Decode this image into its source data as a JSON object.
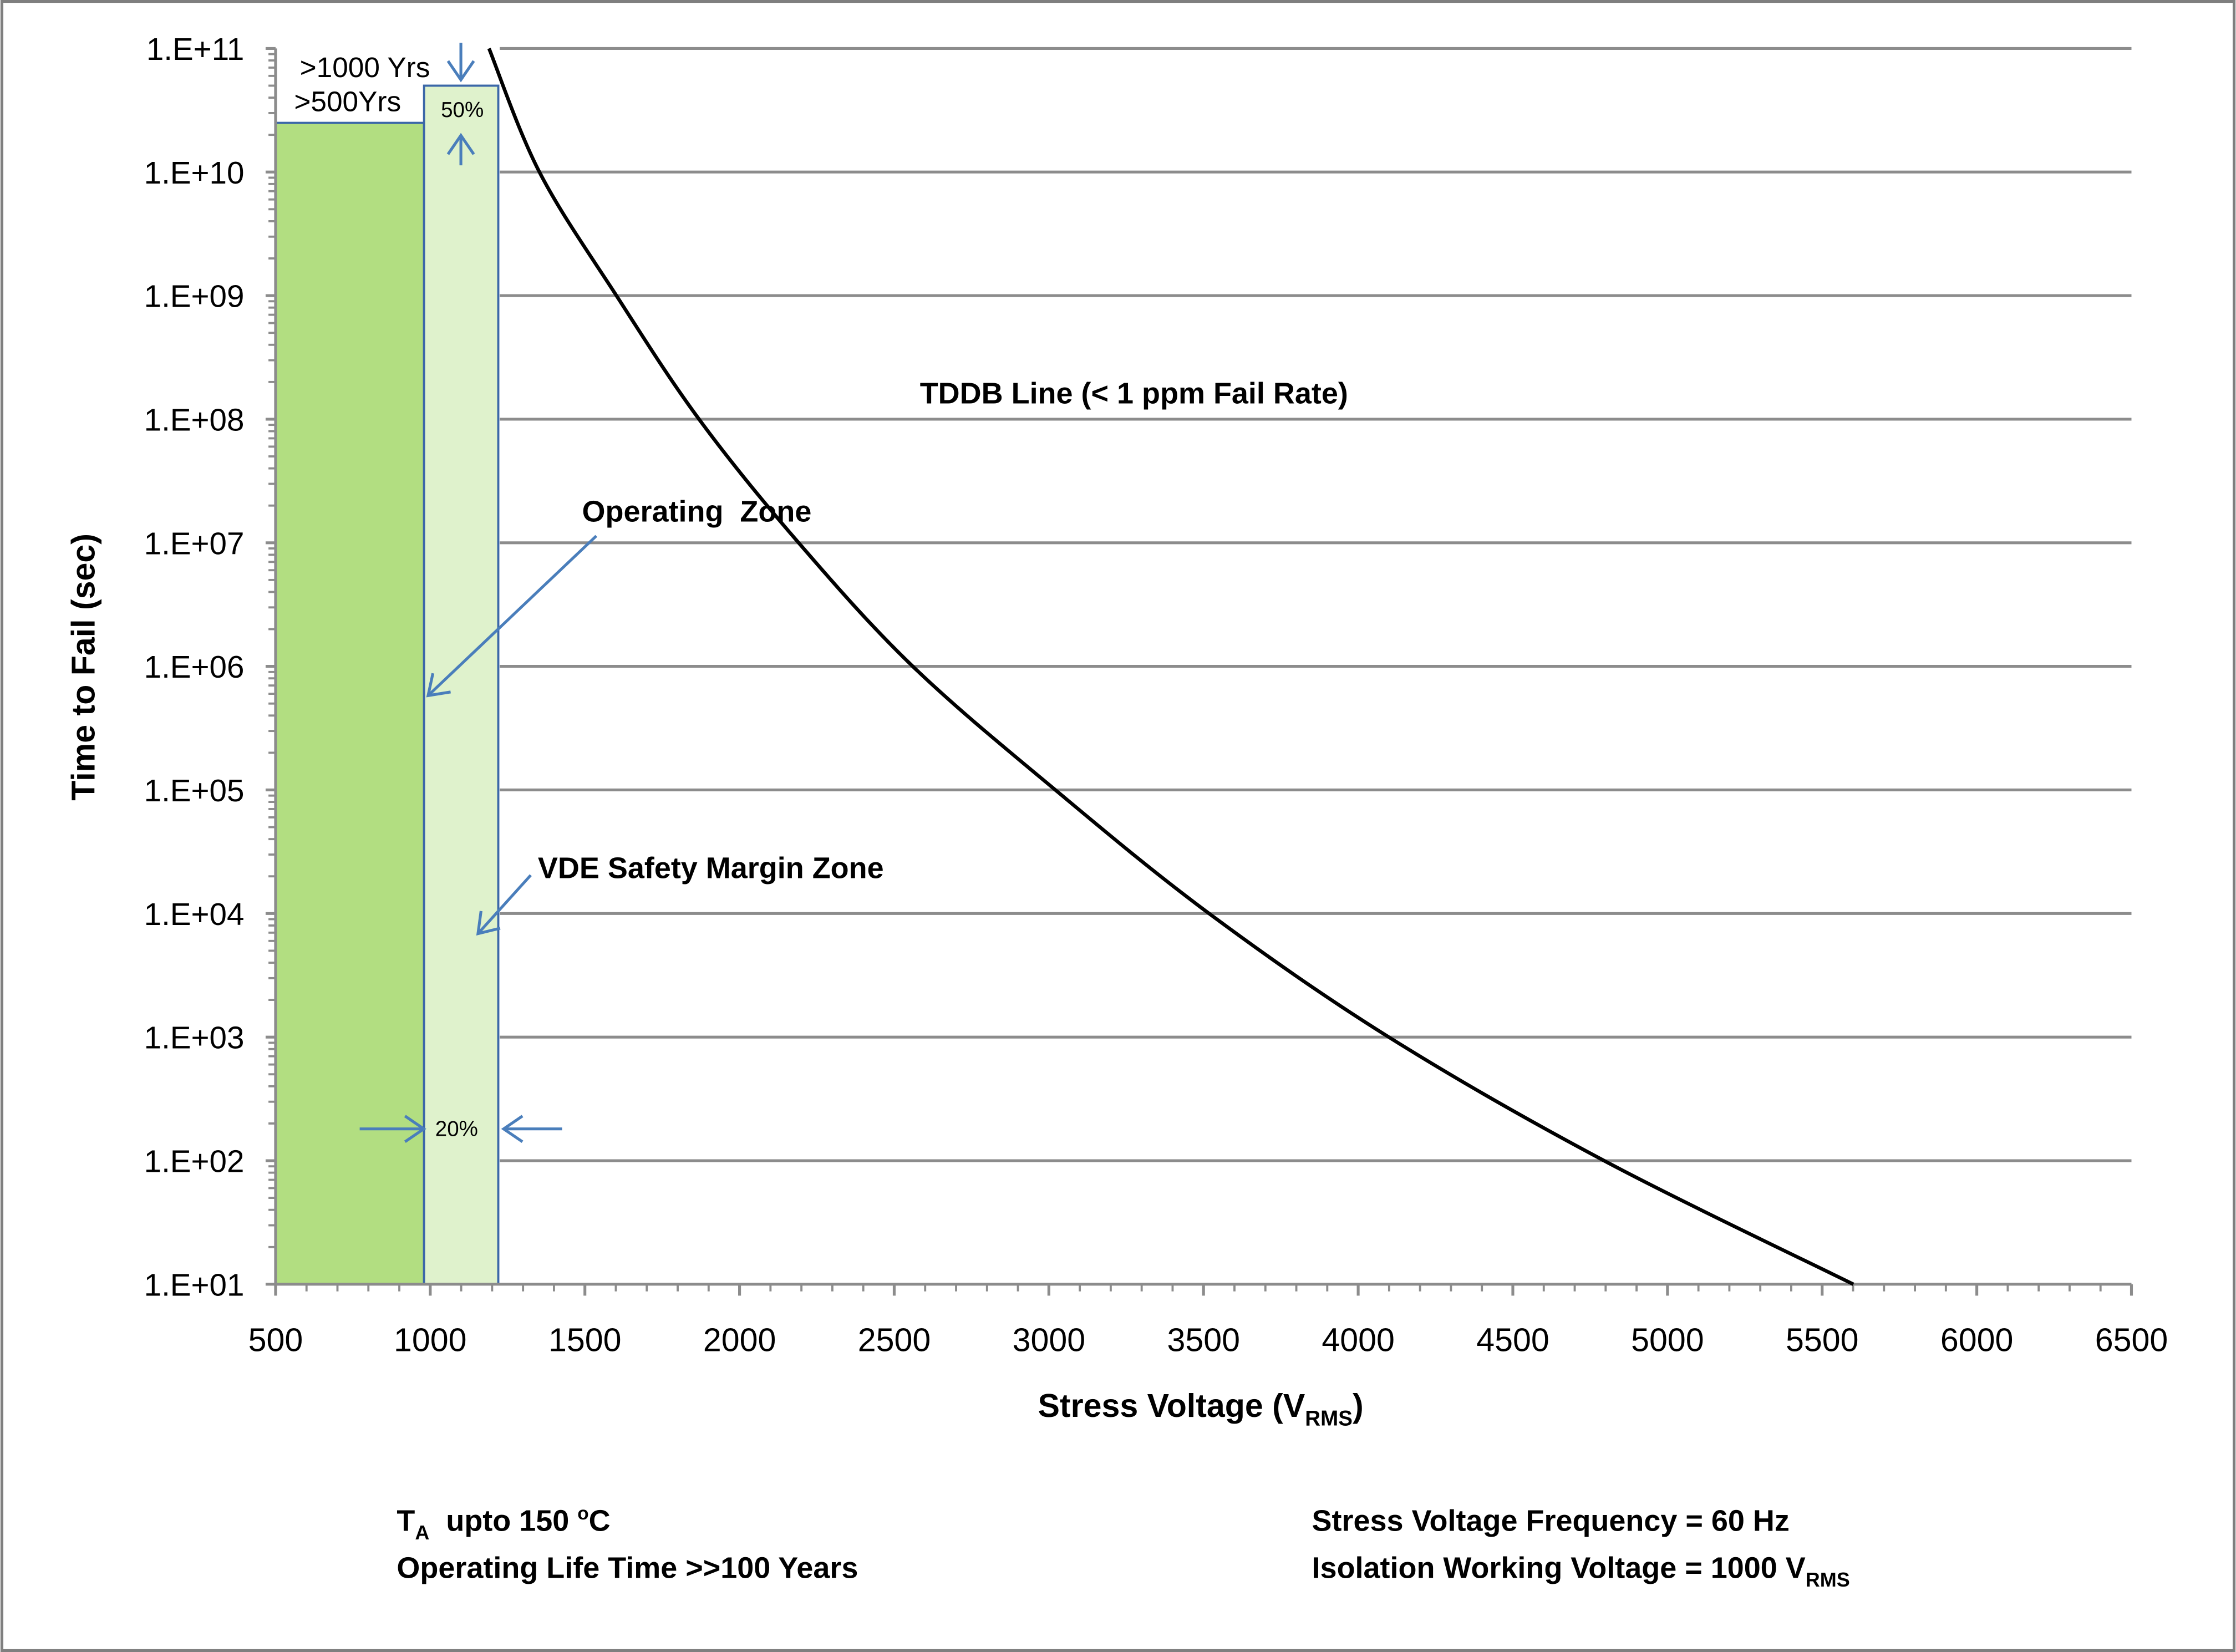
{
  "chart_data": {
    "type": "line",
    "title": "",
    "xlabel": "Stress Voltage (V",
    "xlabel_sub": "RMS",
    "xlabel_end": ")",
    "ylabel": "Time to Fail (sec)",
    "xlim": [
      500,
      6500
    ],
    "ylim": [
      10.0,
      100000000000.0
    ],
    "yscale": "log",
    "grid": "horizontal major",
    "x_ticks": [
      "500",
      "1000",
      "1500",
      "2000",
      "2500",
      "3000",
      "3500",
      "4000",
      "4500",
      "5000",
      "5500",
      "6000",
      "6500"
    ],
    "y_ticks": [
      "1.E+01",
      "1.E+02",
      "1.E+03",
      "1.E+04",
      "1.E+05",
      "1.E+06",
      "1.E+07",
      "1.E+08",
      "1.E+09",
      "1.E+10",
      "1.E+11"
    ],
    "series": [
      {
        "name": "TDDB Line (< 1 ppm Fail Rate)",
        "color": "#000000",
        "x": [
          1190,
          1353,
          1602,
          1869,
          2191,
          2560,
          3021,
          3518,
          4099,
          4795,
          5601
        ],
        "y": [
          100000000000.0,
          10000000000.0,
          1000000000.0,
          100000000.0,
          10000000.0,
          1000000.0,
          100000.0,
          10000.0,
          1000.0,
          100.0,
          10.0
        ]
      }
    ],
    "zones": [
      {
        "name": "operating-zone",
        "x": [
          500,
          980
        ],
        "y_top": 25000000000.0,
        "color": "#b2de81"
      },
      {
        "name": "vde-safety-margin-zone",
        "x": [
          980,
          1220
        ],
        "y_top": 50000000000.0,
        "color": "#dff2cc"
      }
    ],
    "annotations": {
      "tddb": "TDDB Line (< 1 ppm Fail Rate)",
      "operating": "Operating  Zone",
      "vde": "VDE Safety Margin Zone",
      "yrs1000": ">1000 Yrs",
      "yrs500": ">500Yrs",
      "pct50": "50%",
      "pct20": "20%"
    },
    "arrow_color": "#4a7ebb"
  },
  "notes": {
    "ta_prefix": "T",
    "ta_sub": "A",
    "ta_text": "  upto 150 ",
    "ta_sup": "o",
    "ta_unit": "C",
    "life": "Operating Life Time >>100 Years",
    "freq": "Stress Voltage Frequency = 60 Hz",
    "iso": "Isolation Working Voltage = 1000 V",
    "iso_sub": "RMS"
  }
}
